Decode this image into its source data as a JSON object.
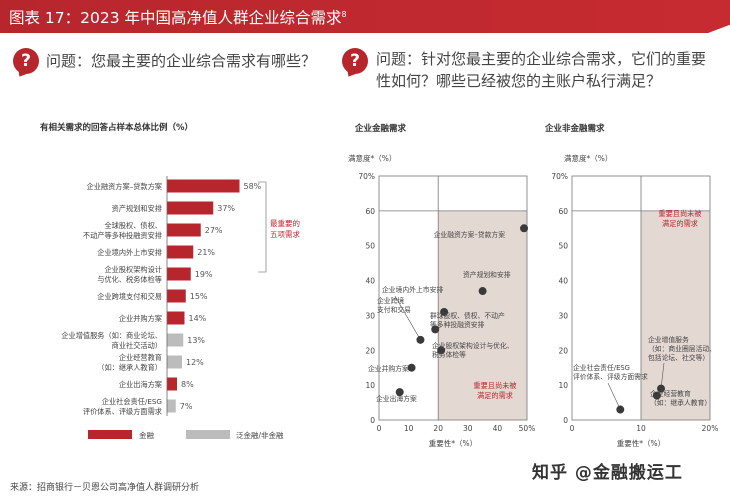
{
  "header": {
    "title": "图表 17：2023 年中国高净值人群企业综合需求",
    "footnote_mark": "8"
  },
  "question_left": "问题：您最主要的企业综合需求有哪些？",
  "question_right": [
    "问题：针对您最主要的企业综合需求，它们的重要",
    "性如何？哪些已经被您的主账户私行满足？"
  ],
  "question_icon": "?",
  "source": "来源：招商银行－贝恩公司高净值人群调研分析",
  "watermark": "知乎 @金融搬运工",
  "colors": {
    "brand_red": "#b8262d",
    "bar_red": "#b8262d",
    "bar_grey": "#bcbcbc",
    "shade": "#e4d8d3"
  },
  "chart_data": [
    {
      "type": "bar",
      "orientation": "horizontal",
      "title": "有相关需求的回答占样本总体比例（%）",
      "categories": [
        [
          "企业融资方案–贷款方案"
        ],
        [
          "资产规划和安排"
        ],
        [
          "全球股权、债权、",
          "不动产等多种投融资安排"
        ],
        [
          "企业境内外上市安排"
        ],
        [
          "企业股权架构设计",
          "与优化、税务体检等"
        ],
        [
          "企业跨境支付和交易"
        ],
        [
          "企业并购方案"
        ],
        [
          "企业增值服务（如：商业论坛、",
          "商业社交活动）"
        ],
        [
          "企业经营教育",
          "（如：继承人教育）"
        ],
        [
          "企业出海方案"
        ],
        [
          "企业社会责任/ESG",
          "评价体系、评级方面需求"
        ]
      ],
      "values": [
        58,
        37,
        27,
        21,
        19,
        15,
        14,
        13,
        12,
        8,
        7
      ],
      "value_labels": [
        "58%",
        "37%",
        "27%",
        "21%",
        "19%",
        "15%",
        "14%",
        "13%",
        "12%",
        "8%",
        "7%"
      ],
      "series_type": [
        "金融",
        "金融",
        "金融",
        "金融",
        "金融",
        "金融",
        "金融",
        "泛金融/非金融",
        "泛金融/非金融",
        "金融",
        "泛金融/非金融"
      ],
      "bracket_label": [
        "最重要的",
        "五项需求"
      ],
      "legend": [
        "金融",
        "泛金融/非金融"
      ]
    },
    {
      "type": "scatter",
      "title": "企业金融需求",
      "ylabel": "满意度*（%）",
      "xlabel": "重要性*（%）",
      "xlim": [
        0,
        50
      ],
      "ylim": [
        0,
        70
      ],
      "xticks": [
        "0",
        "10",
        "20",
        "30",
        "40",
        "50%"
      ],
      "yticks": [
        "0",
        "10",
        "20",
        "30",
        "40",
        "50",
        "60",
        "70%"
      ],
      "shaded_region_label": [
        "重要且尚未被",
        "满足的需求"
      ],
      "points": [
        {
          "x": 49,
          "y": 55,
          "label": [
            "企业融资方案–贷款方案"
          ]
        },
        {
          "x": 35,
          "y": 37,
          "label": [
            "资产规划和安排"
          ]
        },
        {
          "x": 22,
          "y": 31,
          "label": [
            "群球股权、债权、不动产",
            "等多种投融资安排"
          ]
        },
        {
          "x": 19,
          "y": 26,
          "label": [
            "企业跨境",
            "支付和交易"
          ]
        },
        {
          "x": 14,
          "y": 23,
          "label": [
            "企业境内外上市安排"
          ]
        },
        {
          "x": 21,
          "y": 20,
          "label": [
            "企业股权架构设计与优化、",
            "税务体检等"
          ]
        },
        {
          "x": 11,
          "y": 15,
          "label": [
            "企业并购方案"
          ]
        },
        {
          "x": 7,
          "y": 8,
          "label": [
            "企业出海方案"
          ]
        }
      ]
    },
    {
      "type": "scatter",
      "title": "企业非金融需求",
      "ylabel": "满意度*（%）",
      "xlabel": "重要性*（%）",
      "xlim": [
        0,
        20
      ],
      "ylim": [
        0,
        70
      ],
      "xticks": [
        "0",
        "10",
        "20%"
      ],
      "yticks": [
        "0",
        "10",
        "20",
        "30",
        "40",
        "50",
        "60",
        "70%"
      ],
      "shaded_region_label": [
        "重要且尚未被",
        "满足的需求"
      ],
      "points": [
        {
          "x": 12.9,
          "y": 9,
          "label": [
            "企业增值服务",
            "（如：商业圈层活动、",
            "包括论坛、社交等）"
          ]
        },
        {
          "x": 12.3,
          "y": 7,
          "label": [
            "企业经营教育",
            "（如：继承人教育）"
          ]
        },
        {
          "x": 7,
          "y": 3,
          "label": [
            "企业社会责任/ESG",
            "评价体系、评级方面需求"
          ]
        }
      ]
    }
  ]
}
